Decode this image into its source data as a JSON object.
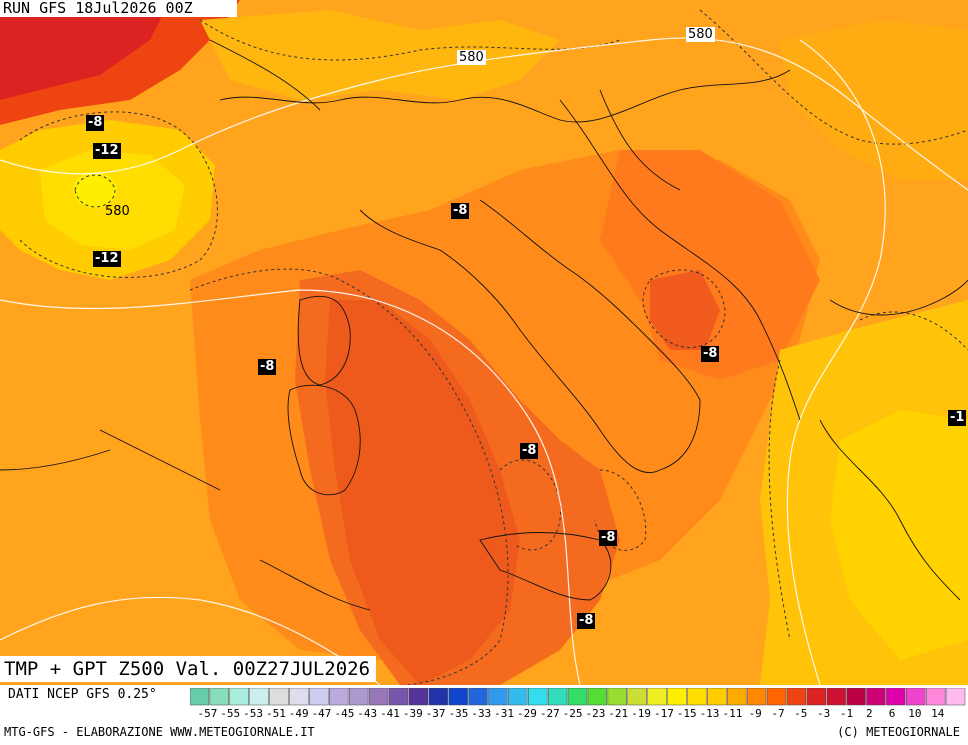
{
  "header": {
    "run_label": "RUN GFS 18Jul2026 00Z"
  },
  "map": {
    "product_label": "TMP + GPT Z500 Val. 00Z27JUL2026",
    "temperature_labels": [
      "-8",
      "-12",
      "-12",
      "-8",
      "-8",
      "-8",
      "-8",
      "-8",
      "-8",
      "-1"
    ],
    "geopotential_labels": [
      "580",
      "580",
      "580"
    ]
  },
  "legend": {
    "source_text": "DATI NCEP GFS 0.25°",
    "tick_labels": [
      "-57",
      "-55",
      "-53",
      "-51",
      "-49",
      "-47",
      "-45",
      "-43",
      "-41",
      "-39",
      "-37",
      "-35",
      "-33",
      "-31",
      "-29",
      "-27",
      "-25",
      "-23",
      "-21",
      "-19",
      "-17",
      "-15",
      "-13",
      "-11",
      "-9",
      "-7",
      "-5",
      "-3",
      "-1",
      "2",
      "6",
      "10",
      "14"
    ],
    "colors": [
      "#66ccaa",
      "#88ddbb",
      "#aaeedd",
      "#cceeee",
      "#dddddd",
      "#ddddee",
      "#ccccee",
      "#bbaadd",
      "#aa99cc",
      "#9977bb",
      "#7755aa",
      "#553399",
      "#2233aa",
      "#1144cc",
      "#2266dd",
      "#3399ee",
      "#33bbee",
      "#33ddee",
      "#33ddbb",
      "#33dd66",
      "#55dd33",
      "#99dd33",
      "#ccdd33",
      "#eeee22",
      "#ffee00",
      "#ffdd00",
      "#ffcc00",
      "#ffaa00",
      "#ff8800",
      "#ff6600",
      "#ee4411",
      "#dd2222",
      "#cc1133",
      "#bb0044",
      "#cc0077",
      "#dd00aa",
      "#ee44cc",
      "#ff88dd",
      "#ffbbee"
    ]
  },
  "footer": {
    "left_text": "MTG-GFS - ELABORAZIONE WWW.METEOGIORNALE.IT",
    "right_text": "(C) METEOGIORNALE"
  }
}
